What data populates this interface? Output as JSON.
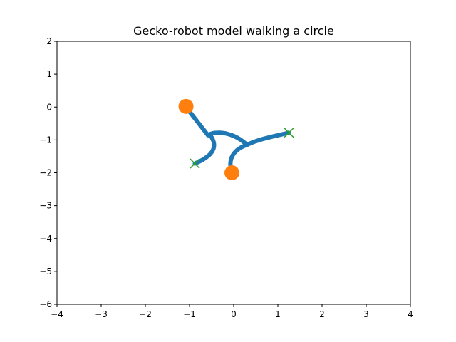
{
  "chart_data": {
    "type": "scatter",
    "title": "Gecko-robot model walking a circle",
    "xlabel": "",
    "ylabel": "",
    "xlim": [
      -4,
      4
    ],
    "ylim": [
      -6,
      2
    ],
    "xticks": [
      -4,
      -3,
      -2,
      -1,
      0,
      1,
      2,
      3,
      4
    ],
    "yticks": [
      2,
      1,
      0,
      -1,
      -2,
      -3,
      -4,
      -5,
      -6
    ],
    "xtick_labels": [
      "−4",
      "−3",
      "−2",
      "−1",
      "0",
      "1",
      "2",
      "3",
      "4"
    ],
    "ytick_labels": [
      "2",
      "1",
      "0",
      "−1",
      "−2",
      "−3",
      "−4",
      "−5",
      "−6"
    ],
    "grid": false,
    "series": [
      {
        "kind": "body-curves",
        "color": "#1f77b4",
        "curves": [
          [
            [
              -1.08,
              0.0
            ],
            [
              -0.58,
              -0.86
            ]
          ],
          [
            [
              -0.58,
              -0.86
            ],
            [
              -0.48,
              -0.74
            ],
            [
              -0.05,
              -0.7
            ],
            [
              0.3,
              -1.15
            ]
          ],
          [
            [
              -0.52,
              -0.88
            ],
            [
              -0.38,
              -1.15
            ],
            [
              -0.4,
              -1.45
            ],
            [
              -0.88,
              -1.72
            ]
          ],
          [
            [
              0.3,
              -1.15
            ],
            [
              -0.02,
              -1.3
            ],
            [
              -0.14,
              -1.6
            ],
            [
              -0.04,
              -2.0
            ]
          ],
          [
            [
              0.3,
              -1.15
            ],
            [
              0.55,
              -0.98
            ],
            [
              0.95,
              -0.88
            ],
            [
              1.25,
              -0.78
            ]
          ]
        ]
      },
      {
        "kind": "fixed-feet",
        "color": "#ff7f0e",
        "marker": "circle",
        "points": [
          [
            -1.08,
            0.02
          ],
          [
            -0.04,
            -2.0
          ]
        ]
      },
      {
        "kind": "free-feet",
        "color": "#2ca02c",
        "marker": "x",
        "points": [
          [
            -0.88,
            -1.72
          ],
          [
            1.25,
            -0.78
          ]
        ]
      }
    ]
  }
}
